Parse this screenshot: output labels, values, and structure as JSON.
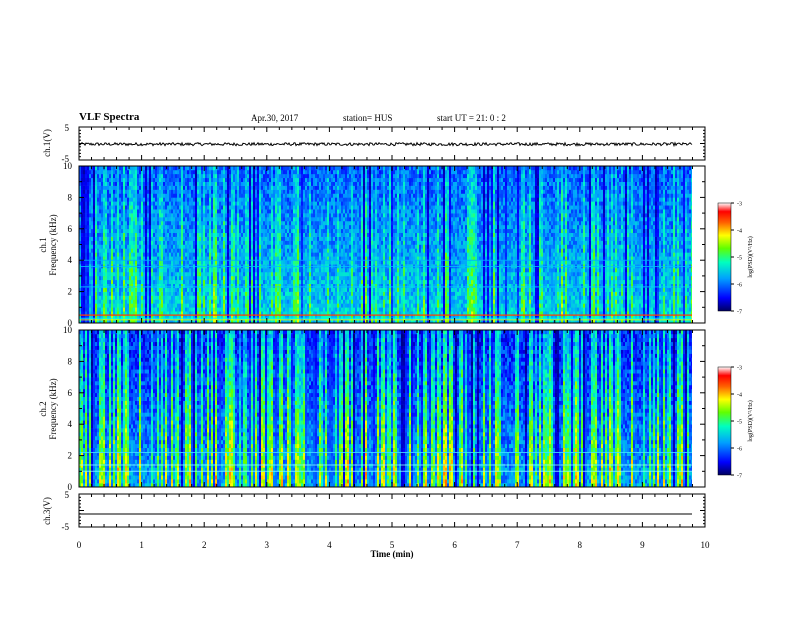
{
  "header": {
    "title": "VLF Spectra",
    "date": "Apr.30, 2017",
    "station": "station= HUS",
    "start": "start  UT =   21: 0  : 2"
  },
  "chart_data": [
    {
      "type": "line",
      "ylabel": "ch.1(V)",
      "ylim": [
        -5,
        5
      ],
      "yticks": [
        5,
        -5
      ],
      "xlim": [
        0,
        10
      ],
      "series": [
        {
          "values_description_level": -0.2
        }
      ]
    },
    {
      "type": "heatmap",
      "ylabel": "ch.1\nFrequency (kHz)",
      "ylim": [
        0,
        10
      ],
      "yticks": [
        0,
        2,
        4,
        6,
        8,
        10
      ],
      "xlim": [
        0,
        10
      ],
      "colorbar": {
        "label": "log(PSD)(V²/Hz)",
        "range": [
          -7,
          -3
        ],
        "ticks": [
          -3,
          -4,
          -5,
          -6,
          -7
        ]
      }
    },
    {
      "type": "heatmap",
      "ylabel": "ch.2\nFrequency (kHz)",
      "ylim": [
        0,
        10
      ],
      "yticks": [
        0,
        2,
        4,
        6,
        8,
        10
      ],
      "xlim": [
        0,
        10
      ],
      "colorbar": {
        "label": "log(PSD)(V²/Hz)",
        "range": [
          -7,
          -3
        ],
        "ticks": [
          -3,
          -4,
          -5,
          -6,
          -7
        ]
      }
    },
    {
      "type": "line",
      "ylabel": "ch.3(V)",
      "ylim": [
        -5,
        5
      ],
      "yticks": [
        5,
        -5
      ],
      "xlim": [
        0,
        10
      ],
      "series": [
        {
          "values_description_level": -2.2
        }
      ]
    }
  ],
  "xaxis": {
    "label": "Time  (min)",
    "ticks": [
      "0",
      "1",
      "2",
      "3",
      "4",
      "5",
      "6",
      "7",
      "8",
      "9",
      "10"
    ]
  },
  "colors": {
    "cmap": [
      "#000080",
      "#0000ff",
      "#0080ff",
      "#00ffff",
      "#00ff80",
      "#80ff00",
      "#ffff00",
      "#ff8000",
      "#ff0000",
      "#ffffff"
    ]
  }
}
